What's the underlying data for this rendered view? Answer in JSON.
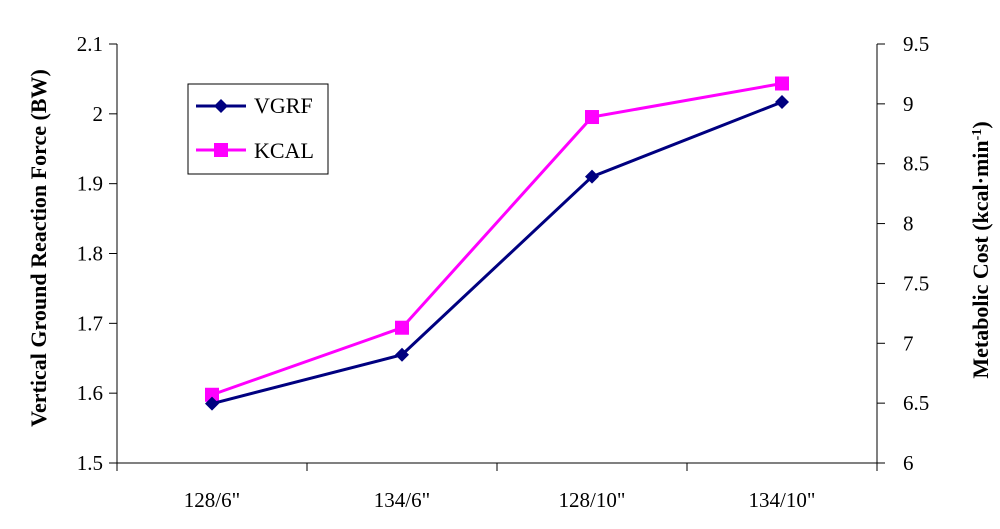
{
  "chart_data": {
    "type": "line",
    "categories": [
      "128/6\"",
      "134/6\"",
      "128/10\"",
      "134/10\""
    ],
    "series": [
      {
        "name": "VGRF",
        "axis": "left",
        "color": "#000080",
        "marker": "diamond",
        "values": [
          1.585,
          1.655,
          1.91,
          2.017
        ]
      },
      {
        "name": "KCAL",
        "axis": "right",
        "color": "#ff00ff",
        "marker": "square",
        "values": [
          6.57,
          7.13,
          8.89,
          9.17
        ]
      }
    ],
    "ylabel": "Vertical Ground Reaction Force (BW)",
    "ylabel_right": "Metabolic Cost (kcal·min",
    "ylabel_right_superscript": "-1",
    "ylabel_right_close": ")",
    "ylim": [
      1.5,
      2.1
    ],
    "ylim_right": [
      6,
      9.5
    ],
    "yticks": [
      "1.5",
      "1.6",
      "1.7",
      "1.8",
      "1.9",
      "2",
      "2.1"
    ],
    "yticks_right": [
      "6",
      "6.5",
      "7",
      "7.5",
      "8",
      "8.5",
      "9",
      "9.5"
    ],
    "legend_position": "top-left",
    "grid": false
  }
}
